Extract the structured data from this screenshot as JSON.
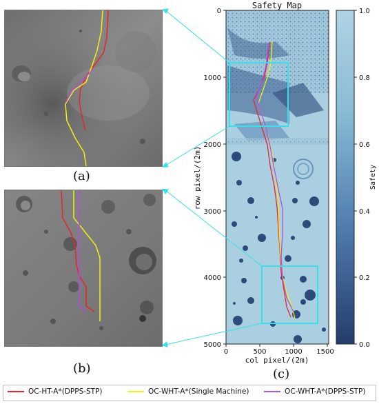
{
  "panel_labels": {
    "a": "(a)",
    "b": "(b)",
    "c": "(c)"
  },
  "safety_map": {
    "title": "Safety Map",
    "xlabel": "col pixel/(2m)",
    "ylabel": "row pixel/(2m)",
    "xticks": [
      "0",
      "500",
      "1000",
      "1500"
    ],
    "yticks": [
      "0",
      "1000",
      "2000",
      "3000",
      "4000",
      "5000"
    ]
  },
  "colorbar": {
    "label": "Safety",
    "ticks": [
      "1.0",
      "0.8",
      "0.6",
      "0.4",
      "0.2",
      "0.0"
    ]
  },
  "legend": [
    {
      "label": "OC-HT-A*(DPPS-STP)",
      "color": "#e8242b"
    },
    {
      "label": "OC-WHT-A*(Single Machine)",
      "color": "#f2ee13"
    },
    {
      "label": "OC-WHT-A*(DPPS-STP)",
      "color": "#b04fe0"
    }
  ],
  "colors": {
    "zoom_frame": "#35e0ea",
    "map_bright": "#a9cfe0",
    "map_dark": "#2d4a7a"
  }
}
